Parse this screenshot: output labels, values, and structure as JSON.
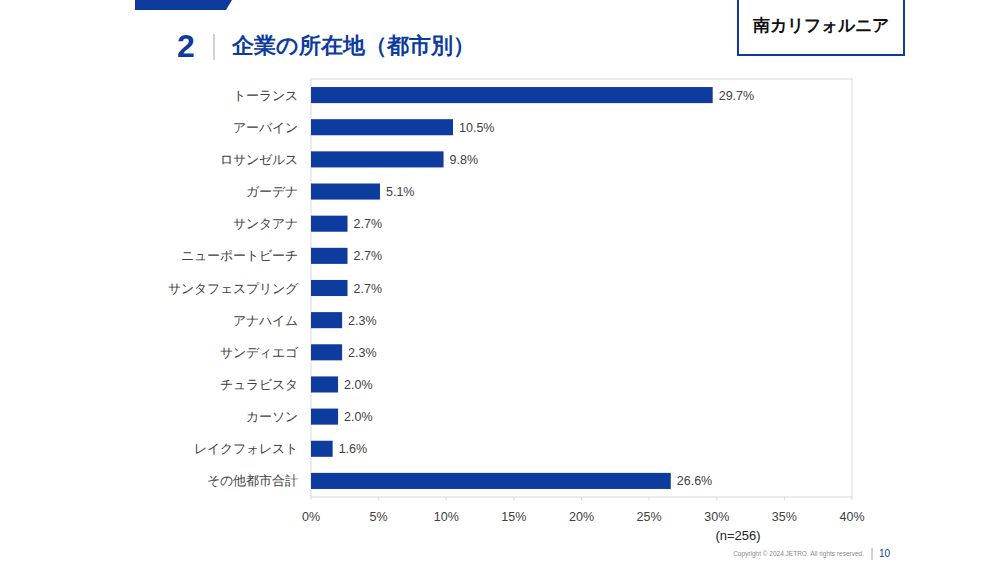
{
  "slide": {
    "number": "2",
    "region": "南カリフォルニア",
    "copyright": "Copyright © 2024 JETRO. All rights reserved.",
    "page": "10"
  },
  "chart_data": {
    "type": "bar",
    "orientation": "horizontal",
    "title": "企業の所在地（都市別）",
    "categories": [
      "トーランス",
      "アーバイン",
      "ロサンゼルス",
      "ガーデナ",
      "サンタアナ",
      "ニューポートビーチ",
      "サンタフェスプリング",
      "アナハイム",
      "サンディエゴ",
      "チュラビスタ",
      "カーソン",
      "レイクフォレスト",
      "その他都市合計"
    ],
    "values": [
      29.7,
      10.5,
      9.8,
      5.1,
      2.7,
      2.7,
      2.7,
      2.3,
      2.3,
      2.0,
      2.0,
      1.6,
      26.6
    ],
    "value_labels": [
      "29.7%",
      "10.5%",
      "9.8%",
      "5.1%",
      "2.7%",
      "2.7%",
      "2.7%",
      "2.3%",
      "2.3%",
      "2.0%",
      "2.0%",
      "1.6%",
      "26.6%"
    ],
    "color": "#0d3b9e",
    "xlim": [
      0,
      40
    ],
    "xticks": [
      {
        "value": 0,
        "label": "0%"
      },
      {
        "value": 5,
        "label": "5%"
      },
      {
        "value": 10,
        "label": "10%"
      },
      {
        "value": 15,
        "label": "15%"
      },
      {
        "value": 20,
        "label": "20%"
      },
      {
        "value": 25,
        "label": "25%"
      },
      {
        "value": 30,
        "label": "30%"
      },
      {
        "value": 35,
        "label": "35%"
      },
      {
        "value": 40,
        "label": "40%"
      }
    ],
    "grid": false,
    "data_labels": true,
    "annotations": [
      "(n=256)"
    ]
  }
}
